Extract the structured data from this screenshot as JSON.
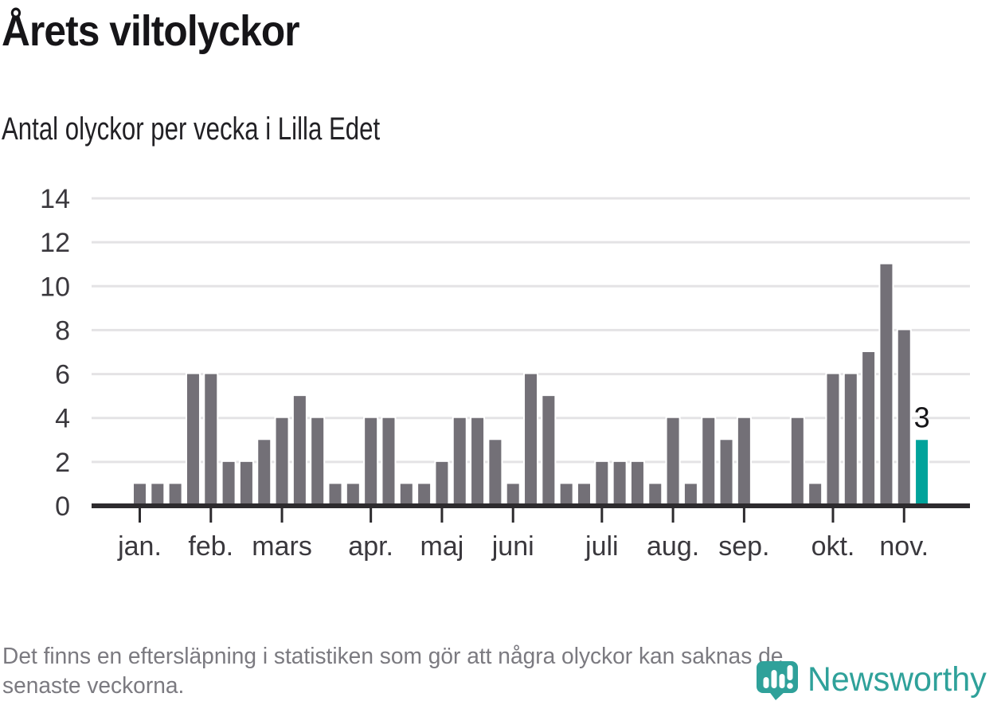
{
  "chart_data": {
    "type": "bar",
    "title": "Årets viltolyckor",
    "subtitle": "Antal olyckor per vecka i Lilla Edet",
    "x_unit": "week",
    "values": [
      1,
      1,
      1,
      6,
      6,
      2,
      2,
      3,
      4,
      5,
      4,
      1,
      1,
      4,
      4,
      1,
      1,
      2,
      4,
      4,
      3,
      1,
      6,
      5,
      1,
      1,
      2,
      2,
      2,
      1,
      4,
      1,
      4,
      3,
      4,
      0,
      0,
      4,
      1,
      6,
      6,
      7,
      11,
      8,
      3
    ],
    "month_ticks": [
      {
        "label": "jan.",
        "week": 1
      },
      {
        "label": "feb.",
        "week": 5
      },
      {
        "label": "mars",
        "week": 9
      },
      {
        "label": "apr.",
        "week": 14
      },
      {
        "label": "maj",
        "week": 18
      },
      {
        "label": "juni",
        "week": 22
      },
      {
        "label": "juli",
        "week": 27
      },
      {
        "label": "aug.",
        "week": 31
      },
      {
        "label": "sep.",
        "week": 35
      },
      {
        "label": "okt.",
        "week": 40
      },
      {
        "label": "nov.",
        "week": 44
      }
    ],
    "yticks": [
      0,
      2,
      4,
      6,
      8,
      10,
      12,
      14
    ],
    "ylim": [
      0,
      14
    ],
    "grid": true,
    "legend": "none",
    "highlight_last_bar": true,
    "last_bar_label": "3",
    "colors": {
      "bar": "#737077",
      "highlight": "#00a39b",
      "grid": "#e4e3e5",
      "axis": "#2d2b2e",
      "tick_label": "#3a383d",
      "annotation": "#161518"
    }
  },
  "footer": {
    "lines": [
      "Det finns en eftersläpning i statistiken som gör att några olyckor kan saknas de",
      "senaste veckorna."
    ]
  },
  "logo": {
    "wordmark": "Newsworthy",
    "color": "#2fa19a"
  }
}
